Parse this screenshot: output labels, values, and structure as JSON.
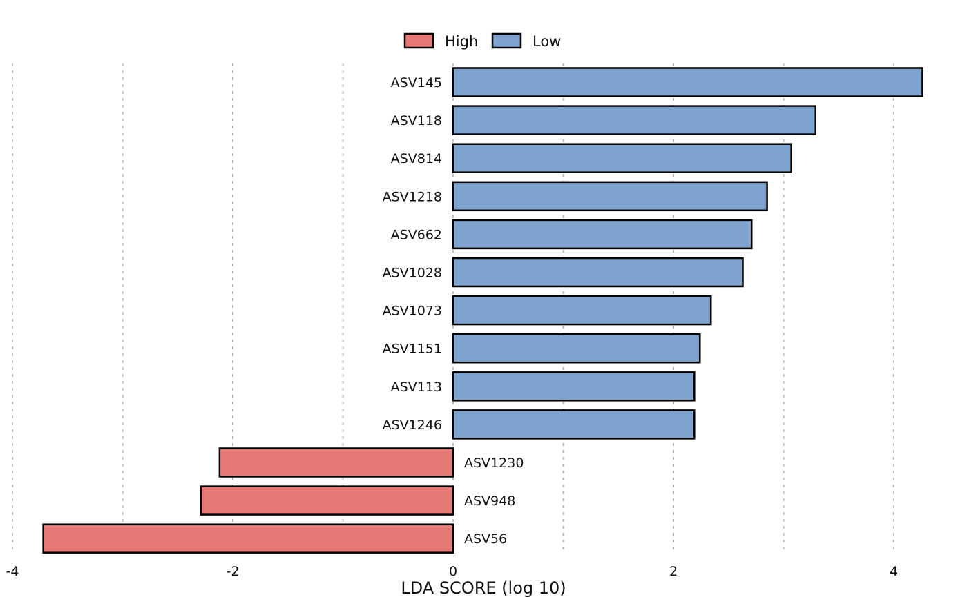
{
  "chart_data": {
    "type": "bar",
    "orientation": "horizontal",
    "xlabel": "LDA SCORE (log 10)",
    "ylabel": "",
    "xlim": [
      -4,
      4.3
    ],
    "xticks": [
      -4,
      -2,
      0,
      2,
      4
    ],
    "grid": "vertical dashed",
    "legend_position": "top",
    "legend": [
      {
        "name": "High",
        "color": "#e67975"
      },
      {
        "name": "Low",
        "color": "#7ea3cf"
      }
    ],
    "categories": [
      "ASV145",
      "ASV118",
      "ASV814",
      "ASV1218",
      "ASV662",
      "ASV1028",
      "ASV1073",
      "ASV1151",
      "ASV113",
      "ASV1246",
      "ASV1230",
      "ASV948",
      "ASV56"
    ],
    "values": [
      4.26,
      3.29,
      3.07,
      2.85,
      2.71,
      2.63,
      2.34,
      2.24,
      2.19,
      2.19,
      -2.12,
      -2.29,
      -3.72
    ],
    "groups": [
      "Low",
      "Low",
      "Low",
      "Low",
      "Low",
      "Low",
      "Low",
      "Low",
      "Low",
      "Low",
      "High",
      "High",
      "High"
    ]
  }
}
